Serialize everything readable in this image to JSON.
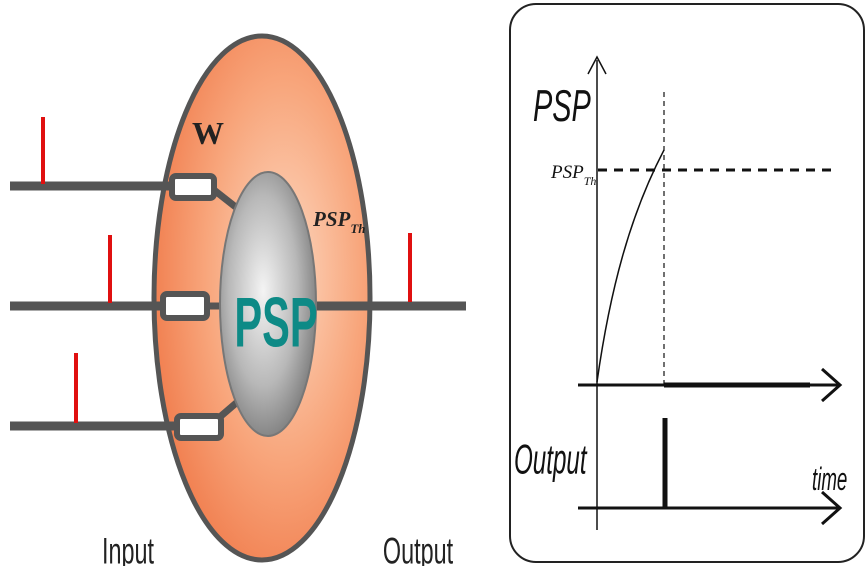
{
  "neuron": {
    "weight_label": "W",
    "soma_label": "PSP",
    "threshold_label_main": "PSP",
    "threshold_label_sub": "Th",
    "input_label": "Input",
    "output_label": "Output"
  },
  "graph": {
    "psp_axis_label": "PSP",
    "threshold_label_main": "PSP",
    "threshold_label_sub": "Th",
    "output_axis_label": "Output",
    "time_label": "time"
  },
  "colors": {
    "cell_fill": "#f5956a",
    "cell_stroke": "#555555",
    "soma_fill": "#9a9a9a",
    "psp_text": "#0e8a86",
    "spike": "#e01010",
    "line": "#555555"
  }
}
